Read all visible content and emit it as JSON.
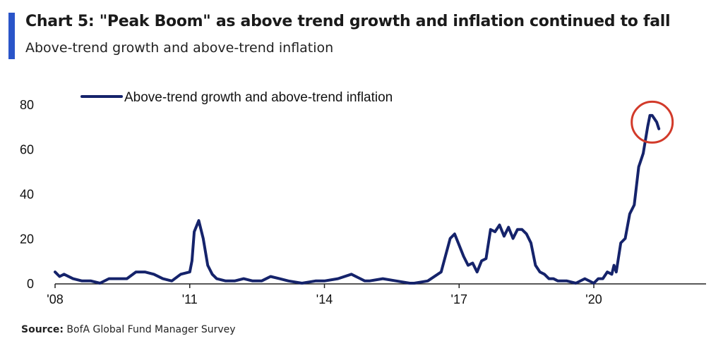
{
  "header": {
    "title": "Chart 5: \"Peak Boom\" as above trend growth and inflation continued to fall",
    "subtitle": "Above-trend growth and above-trend inflation"
  },
  "footer": {
    "source_label": "Source:",
    "source_text": "BofA Global Fund Manager Survey"
  },
  "colors": {
    "accent": "#2a55c9",
    "series": "#15236b",
    "highlight_circle": "#d23a2a"
  },
  "chart_data": {
    "type": "line",
    "xlim": [
      2008,
      2022.5
    ],
    "ylim": [
      0,
      80
    ],
    "yticks": [
      0,
      20,
      40,
      60,
      80
    ],
    "xtick_labels": [
      {
        "value": 2008,
        "label": "'08"
      },
      {
        "value": 2011,
        "label": "'11"
      },
      {
        "value": 2014,
        "label": "'14"
      },
      {
        "value": 2017,
        "label": "'17"
      },
      {
        "value": 2020,
        "label": "'20"
      }
    ],
    "legend_position": "top-left",
    "highlight": {
      "x": 2021.3,
      "y": 72,
      "shape": "circle"
    },
    "series": [
      {
        "name": "Above-trend growth and above-trend inflation",
        "x": [
          2008.0,
          2008.1,
          2008.2,
          2008.4,
          2008.6,
          2008.8,
          2009.0,
          2009.2,
          2009.4,
          2009.6,
          2009.8,
          2010.0,
          2010.2,
          2010.4,
          2010.6,
          2010.8,
          2011.0,
          2011.05,
          2011.1,
          2011.2,
          2011.3,
          2011.4,
          2011.5,
          2011.6,
          2011.8,
          2012.0,
          2012.2,
          2012.4,
          2012.6,
          2012.8,
          2013.0,
          2013.2,
          2013.5,
          2013.8,
          2014.0,
          2014.3,
          2014.6,
          2014.9,
          2015.0,
          2015.3,
          2015.6,
          2015.9,
          2016.0,
          2016.3,
          2016.6,
          2016.8,
          2016.9,
          2017.0,
          2017.1,
          2017.2,
          2017.3,
          2017.4,
          2017.5,
          2017.6,
          2017.7,
          2017.8,
          2017.9,
          2018.0,
          2018.1,
          2018.2,
          2018.3,
          2018.4,
          2018.5,
          2018.6,
          2018.7,
          2018.8,
          2018.9,
          2019.0,
          2019.1,
          2019.2,
          2019.4,
          2019.6,
          2019.8,
          2020.0,
          2020.1,
          2020.2,
          2020.3,
          2020.4,
          2020.45,
          2020.5,
          2020.6,
          2020.7,
          2020.8,
          2020.9,
          2021.0,
          2021.05,
          2021.1,
          2021.2,
          2021.25,
          2021.3,
          2021.4,
          2021.45
        ],
        "values": [
          5,
          3,
          4,
          2,
          1,
          1,
          0,
          2,
          2,
          2,
          5,
          5,
          4,
          2,
          1,
          4,
          5,
          10,
          23,
          28,
          20,
          8,
          4,
          2,
          1,
          1,
          2,
          1,
          1,
          3,
          2,
          1,
          0,
          1,
          1,
          2,
          4,
          1,
          1,
          2,
          1,
          0,
          0,
          1,
          5,
          20,
          22,
          17,
          12,
          8,
          9,
          5,
          10,
          11,
          24,
          23,
          26,
          21,
          25,
          20,
          24,
          24,
          22,
          18,
          8,
          5,
          4,
          2,
          2,
          1,
          1,
          0,
          2,
          0,
          2,
          2,
          5,
          4,
          8,
          5,
          18,
          20,
          31,
          35,
          52,
          55,
          58,
          70,
          75,
          75,
          72,
          69
        ]
      }
    ]
  }
}
